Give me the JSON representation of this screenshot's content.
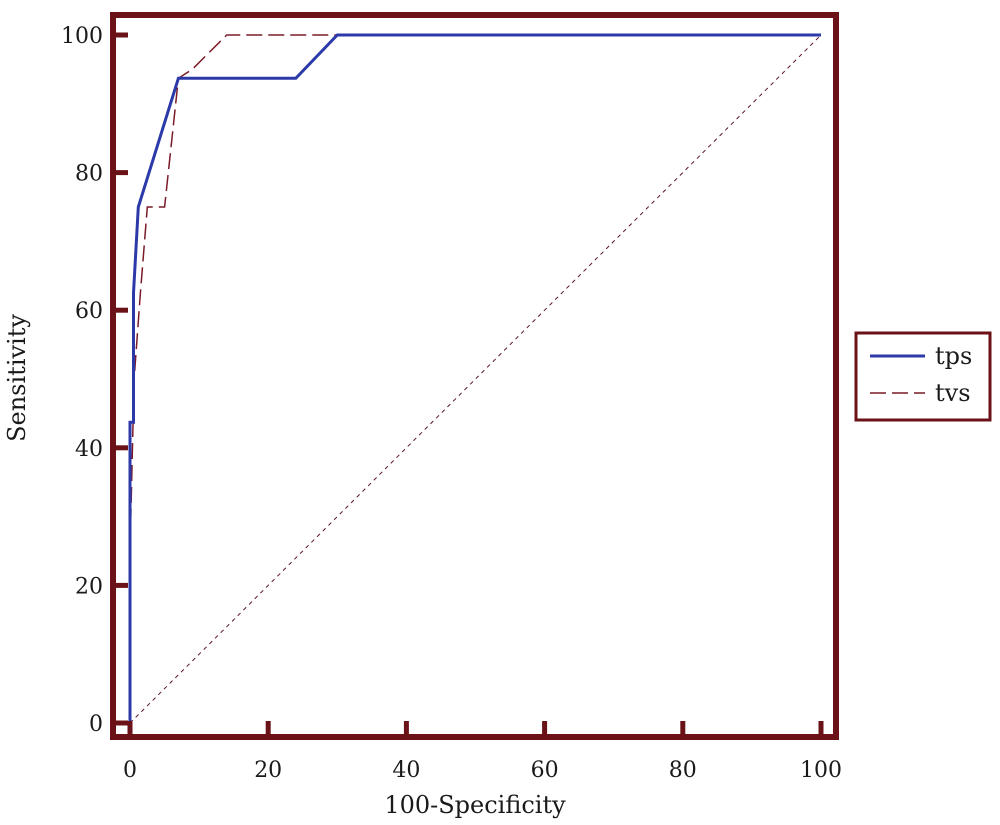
{
  "chart_data": {
    "type": "line",
    "title": "",
    "xlabel": "100-Specificity",
    "ylabel": "Sensitivity",
    "xlim": [
      0,
      100
    ],
    "ylim": [
      0,
      100
    ],
    "x_ticks": [
      0,
      20,
      40,
      60,
      80,
      100
    ],
    "y_ticks": [
      0,
      20,
      40,
      60,
      80,
      100
    ],
    "grid": false,
    "legend_position": "right",
    "series": [
      {
        "name": "tps",
        "color": "#2b3aa8",
        "line_style": "solid",
        "points": [
          [
            0,
            0
          ],
          [
            0,
            43.7
          ],
          [
            0.5,
            43.7
          ],
          [
            0.5,
            62.5
          ],
          [
            1.2,
            75
          ],
          [
            7,
            93.7
          ],
          [
            24,
            93.7
          ],
          [
            30,
            100
          ],
          [
            100,
            100
          ]
        ]
      },
      {
        "name": "tvs",
        "color": "#7a1a28",
        "line_style": "dashed",
        "points": [
          [
            0,
            0
          ],
          [
            0,
            25
          ],
          [
            0.6,
            50
          ],
          [
            1.5,
            62.5
          ],
          [
            2.5,
            75
          ],
          [
            5,
            75
          ],
          [
            7,
            93.7
          ],
          [
            9,
            95
          ],
          [
            14,
            100
          ],
          [
            100,
            100
          ]
        ]
      },
      {
        "name": "",
        "color": "#5a1530",
        "line_style": "dotted",
        "points": [
          [
            0,
            0
          ],
          [
            100,
            100
          ]
        ]
      }
    ]
  }
}
